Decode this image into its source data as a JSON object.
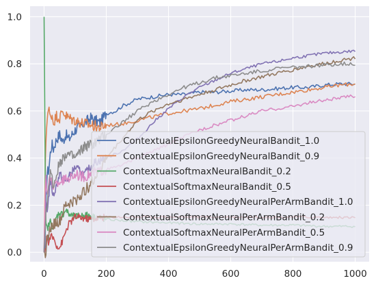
{
  "chart_data": {
    "type": "line",
    "title": "",
    "xlabel": "",
    "ylabel": "",
    "xlim": [
      -45,
      1045
    ],
    "ylim": [
      -0.04,
      1.045
    ],
    "x_ticks": [
      0,
      200,
      400,
      600,
      800,
      1000
    ],
    "x_tick_labels": [
      "0",
      "200",
      "400",
      "600",
      "800",
      "1000"
    ],
    "y_ticks": [
      0.0,
      0.2,
      0.4,
      0.6,
      0.8,
      1.0
    ],
    "y_tick_labels": [
      "0.0",
      "0.2",
      "0.4",
      "0.6",
      "0.8",
      "1.0"
    ],
    "grid": true,
    "legend_position": "lower right",
    "series": [
      {
        "name": "ContextualEpsilonGreedyNeuralBandit_1.0",
        "color": "#4c72b0",
        "noise": 0.008,
        "x": [
          0,
          3,
          6,
          10,
          15,
          20,
          25,
          30,
          40,
          50,
          60,
          70,
          80,
          100,
          120,
          150,
          180,
          200,
          230,
          250,
          300,
          350,
          400,
          450,
          500,
          550,
          600,
          650,
          700,
          750,
          800,
          850,
          900,
          950,
          1000
        ],
        "y": [
          0,
          0,
          0.22,
          0.34,
          0.35,
          0.42,
          0.46,
          0.44,
          0.48,
          0.5,
          0.47,
          0.5,
          0.48,
          0.52,
          0.54,
          0.57,
          0.55,
          0.59,
          0.6,
          0.62,
          0.65,
          0.66,
          0.67,
          0.67,
          0.68,
          0.68,
          0.685,
          0.69,
          0.69,
          0.695,
          0.7,
          0.7,
          0.71,
          0.715,
          0.715
        ]
      },
      {
        "name": "ContextualEpsilonGreedyNeuralBandit_0.9",
        "color": "#dd8452",
        "noise": 0.008,
        "x": [
          0,
          5,
          10,
          15,
          20,
          25,
          30,
          40,
          50,
          60,
          70,
          80,
          100,
          120,
          150,
          180,
          200,
          250,
          300,
          350,
          400,
          450,
          500,
          550,
          600,
          650,
          700,
          750,
          800,
          850,
          900,
          950,
          1000
        ],
        "y": [
          0,
          0.45,
          0.58,
          0.61,
          0.57,
          0.59,
          0.55,
          0.58,
          0.57,
          0.6,
          0.58,
          0.57,
          0.56,
          0.55,
          0.54,
          0.53,
          0.54,
          0.545,
          0.56,
          0.575,
          0.59,
          0.6,
          0.61,
          0.625,
          0.64,
          0.65,
          0.66,
          0.67,
          0.68,
          0.69,
          0.7,
          0.71,
          0.715
        ]
      },
      {
        "name": "ContextualSoftmaxNeuralBandit_0.2",
        "color": "#55a868",
        "noise": 0.005,
        "x": [
          0,
          1,
          3,
          5,
          10,
          20,
          30,
          40,
          50,
          60,
          70,
          80,
          100,
          130,
          160,
          200,
          300,
          400,
          500,
          600,
          700,
          800,
          900,
          1000
        ],
        "y": [
          1.0,
          1.0,
          0.3,
          0.12,
          0.1,
          0.13,
          0.1,
          0.15,
          0.17,
          0.16,
          0.18,
          0.16,
          0.15,
          0.16,
          0.15,
          0.14,
          0.13,
          0.125,
          0.12,
          0.12,
          0.115,
          0.115,
          0.11,
          0.11
        ]
      },
      {
        "name": "ContextualSoftmaxNeuralBandit_0.5",
        "color": "#c44e52",
        "noise": 0.005,
        "x": [
          0,
          5,
          8,
          10,
          15,
          20,
          30,
          40,
          50,
          60,
          70,
          80,
          100,
          150,
          200,
          300,
          400,
          500,
          600,
          700,
          800,
          900,
          1000
        ],
        "y": [
          0,
          0,
          0.08,
          0.06,
          0.03,
          0.07,
          0.06,
          0.03,
          0.02,
          0.05,
          0.09,
          0.12,
          0.15,
          0.14,
          0.15,
          0.15,
          0.15,
          0.15,
          0.15,
          0.15,
          0.15,
          0.148,
          0.148
        ]
      },
      {
        "name": "ContextualEpsilonGreedyNeuralPerArmBandit_1.0",
        "color": "#8172b3",
        "noise": 0.006,
        "x": [
          0,
          5,
          10,
          20,
          30,
          50,
          70,
          100,
          130,
          160,
          200,
          250,
          300,
          350,
          400,
          450,
          500,
          550,
          600,
          650,
          700,
          750,
          800,
          850,
          900,
          950,
          1000
        ],
        "y": [
          0,
          0.22,
          0.18,
          0.3,
          0.24,
          0.33,
          0.3,
          0.36,
          0.33,
          0.38,
          0.4,
          0.43,
          0.48,
          0.55,
          0.61,
          0.66,
          0.7,
          0.73,
          0.76,
          0.78,
          0.8,
          0.81,
          0.825,
          0.835,
          0.845,
          0.85,
          0.855
        ]
      },
      {
        "name": "ContextualSoftmaxNeuralPerArmBandit_0.2",
        "color": "#937860",
        "noise": 0.008,
        "x": [
          0,
          5,
          10,
          20,
          30,
          50,
          70,
          100,
          130,
          150,
          170,
          200,
          250,
          300,
          350,
          400,
          450,
          500,
          550,
          600,
          650,
          700,
          750,
          800,
          850,
          900,
          950,
          1000
        ],
        "y": [
          0,
          0.0,
          0.05,
          0.1,
          0.12,
          0.13,
          0.2,
          0.22,
          0.26,
          0.29,
          0.33,
          0.4,
          0.48,
          0.56,
          0.6,
          0.63,
          0.65,
          0.67,
          0.69,
          0.71,
          0.73,
          0.745,
          0.76,
          0.775,
          0.79,
          0.8,
          0.815,
          0.825
        ]
      },
      {
        "name": "ContextualSoftmaxNeuralPerArmBandit_0.5",
        "color": "#da8bc3",
        "noise": 0.007,
        "x": [
          0,
          5,
          10,
          20,
          30,
          50,
          70,
          100,
          130,
          160,
          200,
          250,
          300,
          350,
          400,
          450,
          500,
          550,
          600,
          650,
          700,
          750,
          800,
          850,
          900,
          950,
          1000
        ],
        "y": [
          0,
          0.35,
          0.24,
          0.32,
          0.28,
          0.3,
          0.31,
          0.33,
          0.32,
          0.34,
          0.35,
          0.37,
          0.4,
          0.43,
          0.46,
          0.49,
          0.52,
          0.54,
          0.56,
          0.58,
          0.6,
          0.61,
          0.62,
          0.635,
          0.645,
          0.655,
          0.665
        ]
      },
      {
        "name": "ContextualEpsilonGreedyNeuralPerArmBandit_0.9",
        "color": "#8c8c8c",
        "noise": 0.008,
        "x": [
          0,
          5,
          10,
          20,
          30,
          50,
          70,
          100,
          130,
          160,
          200,
          250,
          300,
          350,
          400,
          450,
          500,
          550,
          600,
          650,
          700,
          750,
          800,
          850,
          900,
          950,
          1000
        ],
        "y": [
          0,
          0.15,
          0.2,
          0.35,
          0.28,
          0.38,
          0.42,
          0.4,
          0.45,
          0.46,
          0.5,
          0.55,
          0.6,
          0.64,
          0.67,
          0.7,
          0.72,
          0.74,
          0.75,
          0.76,
          0.77,
          0.78,
          0.785,
          0.79,
          0.795,
          0.8,
          0.8
        ]
      }
    ]
  }
}
